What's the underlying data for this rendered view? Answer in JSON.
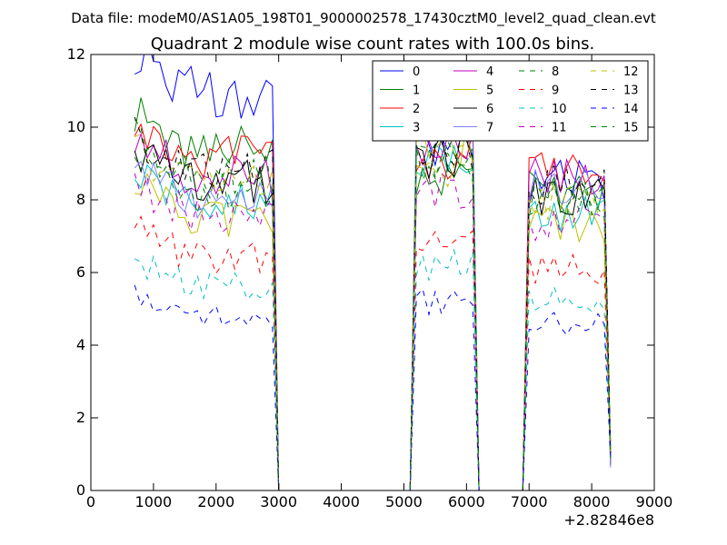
{
  "header": {
    "suptitle": "Data file: modeM0/AS1A05_198T01_9000002578_17430cztM0_level2_quad_clean.evt"
  },
  "chart_data": {
    "type": "line",
    "title": "Quadrant 2 module wise count rates with 100.0s bins.",
    "xlabel": "",
    "ylabel": "",
    "xlim": [
      0,
      9000
    ],
    "ylim": [
      0,
      12
    ],
    "x_ticks": [
      0,
      1000,
      2000,
      3000,
      4000,
      5000,
      6000,
      7000,
      8000,
      9000
    ],
    "y_ticks": [
      0,
      2,
      4,
      6,
      8,
      10,
      12
    ],
    "x_offset_label": "+2.82846e8",
    "grid": false,
    "legend_position": "top-right",
    "segments": [
      {
        "start": 700,
        "end": 2900
      },
      {
        "start": 5200,
        "end": 6100
      },
      {
        "start": 7000,
        "end": 8200
      }
    ],
    "series": [
      {
        "name": "0",
        "color": "#0000ff",
        "dash": "solid",
        "levels": [
          11.0,
          9.5,
          8.5
        ]
      },
      {
        "name": "1",
        "color": "#008000",
        "dash": "solid",
        "levels": [
          9.4,
          8.7,
          8.3
        ]
      },
      {
        "name": "2",
        "color": "#ff0000",
        "dash": "solid",
        "levels": [
          9.2,
          9.2,
          8.8
        ]
      },
      {
        "name": "3",
        "color": "#00bfbf",
        "dash": "solid",
        "levels": [
          8.0,
          9.0,
          7.6
        ]
      },
      {
        "name": "4",
        "color": "#bf00bf",
        "dash": "solid",
        "levels": [
          8.6,
          9.6,
          8.7
        ]
      },
      {
        "name": "5",
        "color": "#bfbf00",
        "dash": "solid",
        "levels": [
          7.5,
          9.5,
          7.3
        ]
      },
      {
        "name": "6",
        "color": "#000000",
        "dash": "solid",
        "levels": [
          8.5,
          9.2,
          8.1
        ]
      },
      {
        "name": "7",
        "color": "#8080ff",
        "dash": "solid",
        "levels": [
          8.0,
          10.0,
          8.3
        ]
      },
      {
        "name": "8",
        "color": "#008000",
        "dash": "dashed",
        "levels": [
          8.2,
          8.9,
          8.0
        ]
      },
      {
        "name": "9",
        "color": "#ff0000",
        "dash": "dashed",
        "levels": [
          6.4,
          7.1,
          6.1
        ]
      },
      {
        "name": "10",
        "color": "#00bfbf",
        "dash": "dashed",
        "levels": [
          5.6,
          6.2,
          5.3
        ]
      },
      {
        "name": "11",
        "color": "#bf00bf",
        "dash": "dashed",
        "levels": [
          7.6,
          8.3,
          7.3
        ]
      },
      {
        "name": "12",
        "color": "#bfbf00",
        "dash": "dashed",
        "levels": [
          8.4,
          9.0,
          8.0
        ]
      },
      {
        "name": "13",
        "color": "#000000",
        "dash": "dashed",
        "levels": [
          8.8,
          9.4,
          8.4
        ]
      },
      {
        "name": "14",
        "color": "#0000ff",
        "dash": "dashed",
        "levels": [
          4.8,
          5.2,
          4.6
        ]
      },
      {
        "name": "15",
        "color": "#008000",
        "dash": "dashed",
        "levels": [
          8.6,
          9.1,
          8.0
        ]
      }
    ]
  }
}
